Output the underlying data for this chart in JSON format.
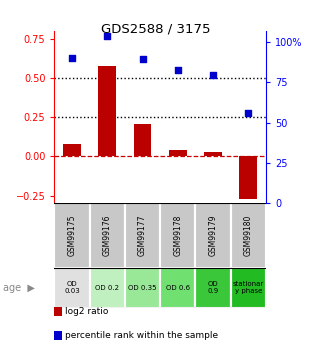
{
  "title": "GDS2588 / 3175",
  "samples": [
    "GSM99175",
    "GSM99176",
    "GSM99177",
    "GSM99178",
    "GSM99179",
    "GSM99180"
  ],
  "log2_ratio": [
    0.08,
    0.58,
    0.21,
    0.04,
    0.03,
    -0.27
  ],
  "percentile_rank": [
    0.63,
    0.77,
    0.62,
    0.55,
    0.52,
    0.28
  ],
  "bar_color": "#bb0000",
  "dot_color": "#0000cc",
  "left_ylim": [
    -0.3,
    0.8
  ],
  "left_yticks": [
    -0.25,
    0.0,
    0.25,
    0.5,
    0.75
  ],
  "right_ylim": [
    0.0,
    1.067
  ],
  "right_yticks": [
    0.0,
    0.25,
    0.5,
    0.75,
    1.0
  ],
  "right_yticklabels": [
    "0",
    "25",
    "50",
    "75",
    "100%"
  ],
  "hline_y": [
    0.25,
    0.5
  ],
  "zero_line_color": "#cc0000",
  "hline_color": "black",
  "age_labels": [
    "OD\n0.03",
    "OD 0.2",
    "OD 0.35",
    "OD 0.6",
    "OD\n0.9",
    "stationar\ny phase"
  ],
  "age_bg_colors": [
    "#e0e0e0",
    "#c0f0c0",
    "#98e898",
    "#70e070",
    "#3ac83a",
    "#22bb22"
  ],
  "sample_bg_color": "#c8c8c8",
  "legend_log2": "log2 ratio",
  "legend_pct": "percentile rank within the sample"
}
